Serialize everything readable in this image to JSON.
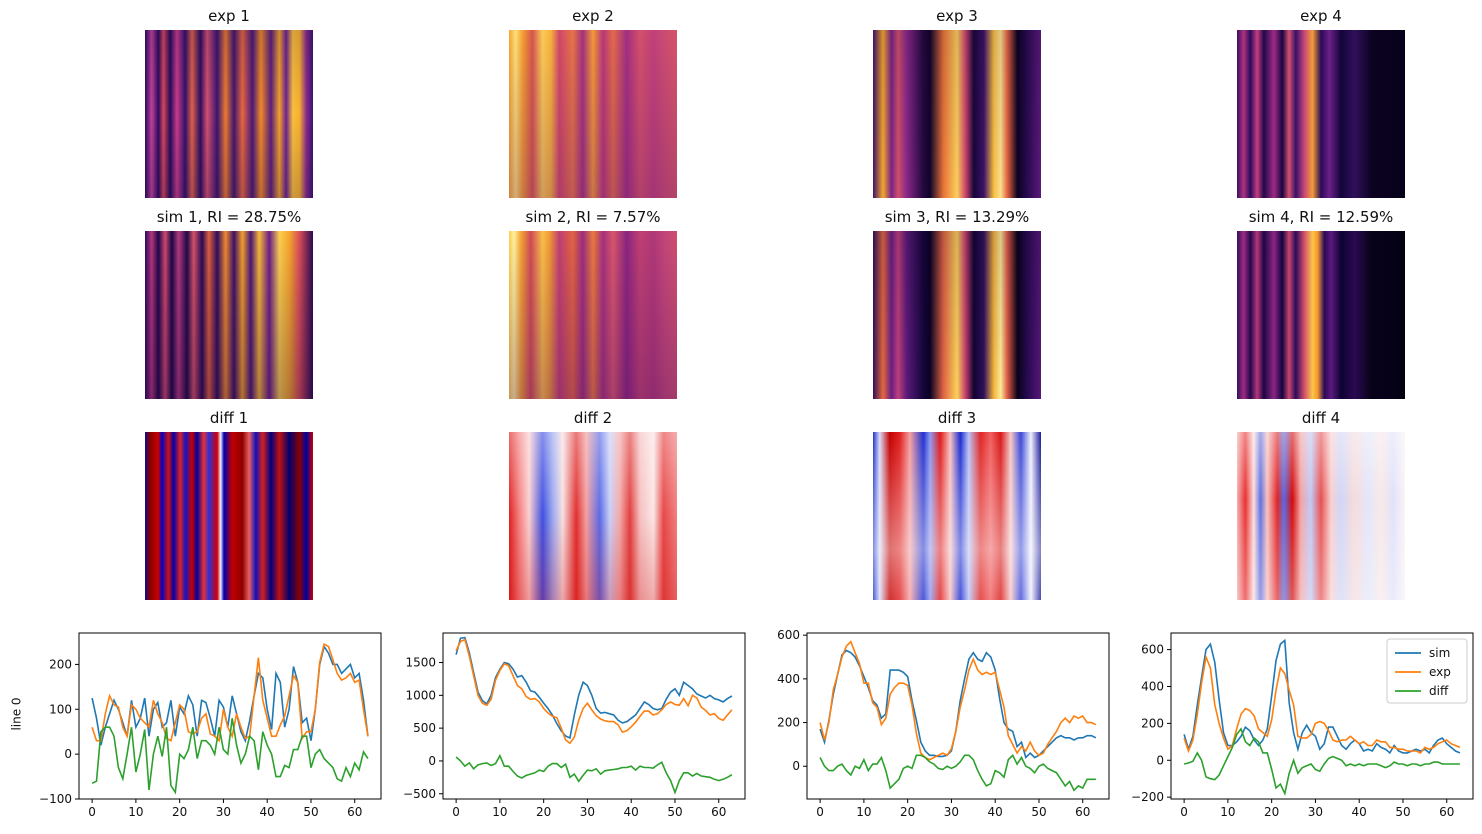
{
  "rows": {
    "exp_titles": [
      "exp 1",
      "exp 2",
      "exp 3",
      "exp 4"
    ],
    "sim_titles": [
      "sim 1, RI = 28.75%",
      "sim 2, RI = 7.57%",
      "sim 3, RI = 13.29%",
      "sim 4, RI = 12.59%"
    ],
    "diff_titles": [
      "diff 1",
      "diff 2",
      "diff 3",
      "diff 4"
    ]
  },
  "ylabel_line": "line 0",
  "colors": {
    "sim": "#1f77b4",
    "exp": "#ff7f0e",
    "diff": "#2ca02c"
  },
  "chart_data": [
    {
      "type": "line",
      "x": [
        0,
        1,
        2,
        3,
        4,
        5,
        6,
        7,
        8,
        9,
        10,
        11,
        12,
        13,
        14,
        15,
        16,
        17,
        18,
        19,
        20,
        21,
        22,
        23,
        24,
        25,
        26,
        27,
        28,
        29,
        30,
        31,
        32,
        33,
        34,
        35,
        36,
        37,
        38,
        39,
        40,
        41,
        42,
        43,
        44,
        45,
        46,
        47,
        48,
        49,
        50,
        51,
        52,
        53,
        54,
        55,
        56,
        57,
        58,
        59,
        60,
        61,
        62,
        63
      ],
      "xlim": [
        -3,
        66
      ],
      "ylim": [
        -100,
        270
      ],
      "xticks": [
        0,
        10,
        20,
        30,
        40,
        50,
        60
      ],
      "yticks": [
        -100,
        0,
        100,
        200
      ],
      "legend": null,
      "series": [
        {
          "name": "sim",
          "values": [
            125,
            80,
            20,
            60,
            90,
            120,
            100,
            70,
            40,
            120,
            60,
            80,
            125,
            40,
            100,
            115,
            60,
            70,
            120,
            40,
            105,
            90,
            130,
            110,
            40,
            120,
            115,
            80,
            40,
            120,
            105,
            60,
            130,
            90,
            50,
            30,
            75,
            130,
            180,
            170,
            100,
            55,
            180,
            160,
            60,
            100,
            195,
            160,
            70,
            80,
            30,
            100,
            200,
            240,
            225,
            200,
            200,
            180,
            190,
            200,
            170,
            180,
            120,
            40
          ]
        },
        {
          "name": "exp",
          "values": [
            60,
            30,
            30,
            90,
            130,
            110,
            105,
            60,
            40,
            110,
            100,
            80,
            70,
            60,
            120,
            90,
            70,
            35,
            30,
            70,
            110,
            100,
            50,
            45,
            50,
            80,
            90,
            45,
            40,
            30,
            100,
            60,
            40,
            90,
            60,
            35,
            40,
            130,
            215,
            120,
            80,
            40,
            40,
            65,
            85,
            130,
            175,
            160,
            35,
            50,
            50,
            100,
            205,
            245,
            240,
            210,
            180,
            165,
            170,
            180,
            160,
            165,
            100,
            40
          ]
        },
        {
          "name": "diff",
          "values": [
            -65,
            -60,
            50,
            60,
            60,
            40,
            -30,
            -55,
            0,
            60,
            -40,
            0,
            55,
            -80,
            0,
            40,
            -5,
            60,
            -70,
            -85,
            0,
            -10,
            10,
            60,
            -10,
            30,
            30,
            20,
            0,
            60,
            10,
            0,
            80,
            20,
            -20,
            0,
            40,
            30,
            -35,
            50,
            20,
            0,
            -50,
            -50,
            -25,
            -30,
            10,
            10,
            40,
            40,
            -30,
            0,
            10,
            -10,
            -20,
            -30,
            -55,
            -60,
            -30,
            -50,
            -20,
            -35,
            5,
            -10
          ]
        }
      ]
    },
    {
      "type": "line",
      "x": [
        0,
        1,
        2,
        3,
        4,
        5,
        6,
        7,
        8,
        9,
        10,
        11,
        12,
        13,
        14,
        15,
        16,
        17,
        18,
        19,
        20,
        21,
        22,
        23,
        24,
        25,
        26,
        27,
        28,
        29,
        30,
        31,
        32,
        33,
        34,
        35,
        36,
        37,
        38,
        39,
        40,
        41,
        42,
        43,
        44,
        45,
        46,
        47,
        48,
        49,
        50,
        51,
        52,
        53,
        54,
        55,
        56,
        57,
        58,
        59,
        60,
        61,
        62,
        63
      ],
      "xlim": [
        -3,
        66
      ],
      "ylim": [
        -580,
        1950
      ],
      "xticks": [
        0,
        10,
        20,
        30,
        40,
        50,
        60
      ],
      "yticks": [
        -500,
        0,
        500,
        1000,
        1500
      ],
      "legend": null,
      "series": [
        {
          "name": "sim",
          "values": [
            1620,
            1870,
            1880,
            1650,
            1350,
            1050,
            920,
            870,
            1000,
            1270,
            1400,
            1500,
            1480,
            1400,
            1280,
            1300,
            1200,
            1070,
            1050,
            970,
            880,
            800,
            700,
            570,
            460,
            380,
            350,
            700,
            1000,
            1200,
            1150,
            1000,
            800,
            730,
            740,
            720,
            700,
            620,
            580,
            600,
            650,
            700,
            800,
            900,
            860,
            800,
            780,
            800,
            940,
            1050,
            1100,
            1000,
            1200,
            1150,
            1100,
            1020,
            990,
            960,
            1000,
            950,
            930,
            900,
            950,
            990
          ]
        },
        {
          "name": "exp",
          "values": [
            1680,
            1820,
            1850,
            1600,
            1300,
            1000,
            880,
            850,
            940,
            1230,
            1380,
            1480,
            1450,
            1300,
            1150,
            1100,
            980,
            940,
            950,
            900,
            800,
            730,
            680,
            660,
            500,
            320,
            270,
            360,
            620,
            800,
            880,
            780,
            690,
            640,
            610,
            600,
            600,
            550,
            440,
            460,
            520,
            590,
            680,
            760,
            760,
            700,
            720,
            780,
            860,
            900,
            860,
            850,
            950,
            840,
            1000,
            960,
            820,
            770,
            700,
            720,
            650,
            620,
            700,
            780
          ]
        },
        {
          "name": "diff",
          "values": [
            60,
            0,
            -80,
            -30,
            -120,
            -60,
            -40,
            -30,
            -70,
            -40,
            80,
            -80,
            -80,
            -160,
            -230,
            -260,
            -220,
            -200,
            -180,
            -140,
            -160,
            -80,
            -40,
            -40,
            -100,
            -50,
            -250,
            -200,
            -310,
            -220,
            -140,
            -150,
            -120,
            -200,
            -150,
            -140,
            -130,
            -120,
            -100,
            -100,
            -80,
            -140,
            -80,
            -100,
            -100,
            -110,
            -60,
            -20,
            -180,
            -300,
            -480,
            -300,
            -180,
            -180,
            -230,
            -190,
            -230,
            -240,
            -250,
            -280,
            -300,
            -280,
            -250,
            -210
          ]
        }
      ]
    },
    {
      "type": "line",
      "x": [
        0,
        1,
        2,
        3,
        4,
        5,
        6,
        7,
        8,
        9,
        10,
        11,
        12,
        13,
        14,
        15,
        16,
        17,
        18,
        19,
        20,
        21,
        22,
        23,
        24,
        25,
        26,
        27,
        28,
        29,
        30,
        31,
        32,
        33,
        34,
        35,
        36,
        37,
        38,
        39,
        40,
        41,
        42,
        43,
        44,
        45,
        46,
        47,
        48,
        49,
        50,
        51,
        52,
        53,
        54,
        55,
        56,
        57,
        58,
        59,
        60,
        61,
        62,
        63
      ],
      "xlim": [
        -3,
        66
      ],
      "ylim": [
        -150,
        610
      ],
      "xticks": [
        0,
        10,
        20,
        30,
        40,
        50,
        60
      ],
      "yticks": [
        0,
        200,
        400,
        600
      ],
      "legend": null,
      "series": [
        {
          "name": "sim",
          "values": [
            170,
            110,
            210,
            330,
            420,
            510,
            530,
            520,
            500,
            460,
            410,
            360,
            300,
            280,
            220,
            240,
            440,
            440,
            440,
            430,
            410,
            300,
            210,
            110,
            70,
            50,
            50,
            45,
            45,
            50,
            70,
            160,
            300,
            400,
            490,
            520,
            490,
            480,
            520,
            500,
            440,
            310,
            200,
            170,
            160,
            90,
            110,
            40,
            60,
            40,
            50,
            70,
            90,
            110,
            130,
            140,
            130,
            130,
            120,
            130,
            130,
            140,
            140,
            130
          ]
        },
        {
          "name": "exp",
          "values": [
            200,
            120,
            200,
            350,
            420,
            500,
            550,
            570,
            520,
            470,
            380,
            380,
            290,
            270,
            190,
            220,
            330,
            360,
            380,
            380,
            370,
            280,
            150,
            60,
            40,
            30,
            40,
            50,
            60,
            50,
            80,
            160,
            270,
            350,
            440,
            490,
            440,
            420,
            430,
            420,
            430,
            350,
            270,
            140,
            100,
            60,
            90,
            70,
            110,
            70,
            50,
            60,
            100,
            130,
            160,
            200,
            220,
            200,
            230,
            220,
            230,
            200,
            200,
            190
          ]
        },
        {
          "name": "diff",
          "values": [
            40,
            0,
            -20,
            -20,
            0,
            10,
            -20,
            -40,
            0,
            -10,
            30,
            -20,
            10,
            10,
            40,
            -20,
            -100,
            -80,
            -60,
            -10,
            0,
            -10,
            50,
            50,
            40,
            20,
            10,
            -10,
            -15,
            0,
            -10,
            0,
            20,
            50,
            50,
            30,
            -20,
            -60,
            -90,
            -80,
            -20,
            -30,
            -50,
            30,
            50,
            10,
            40,
            0,
            -10,
            -30,
            0,
            10,
            -10,
            -20,
            -30,
            -60,
            -90,
            -70,
            -110,
            -90,
            -100,
            -60,
            -60,
            -60
          ]
        }
      ]
    },
    {
      "type": "line",
      "x": [
        0,
        1,
        2,
        3,
        4,
        5,
        6,
        7,
        8,
        9,
        10,
        11,
        12,
        13,
        14,
        15,
        16,
        17,
        18,
        19,
        20,
        21,
        22,
        23,
        24,
        25,
        26,
        27,
        28,
        29,
        30,
        31,
        32,
        33,
        34,
        35,
        36,
        37,
        38,
        39,
        40,
        41,
        42,
        43,
        44,
        45,
        46,
        47,
        48,
        49,
        50,
        51,
        52,
        53,
        54,
        55,
        56,
        57,
        58,
        59,
        60,
        61,
        62,
        63
      ],
      "xlim": [
        -3,
        66
      ],
      "ylim": [
        -210,
        690
      ],
      "xticks": [
        0,
        10,
        20,
        30,
        40,
        50,
        60
      ],
      "yticks": [
        -200,
        0,
        200,
        400,
        600
      ],
      "legend": {
        "position": "top-right",
        "entries": [
          "sim",
          "exp",
          "diff"
        ]
      },
      "series": [
        {
          "name": "sim",
          "values": [
            140,
            60,
            130,
            300,
            450,
            600,
            630,
            530,
            330,
            150,
            80,
            80,
            100,
            130,
            180,
            160,
            110,
            80,
            110,
            170,
            350,
            540,
            630,
            650,
            310,
            150,
            60,
            150,
            190,
            150,
            130,
            60,
            90,
            180,
            180,
            130,
            80,
            60,
            90,
            110,
            90,
            50,
            60,
            50,
            90,
            70,
            60,
            40,
            80,
            50,
            40,
            40,
            50,
            60,
            50,
            60,
            40,
            80,
            110,
            120,
            90,
            70,
            50,
            40
          ]
        },
        {
          "name": "exp",
          "values": [
            120,
            50,
            110,
            250,
            420,
            560,
            500,
            300,
            200,
            120,
            60,
            80,
            170,
            250,
            280,
            270,
            240,
            170,
            150,
            130,
            220,
            380,
            500,
            470,
            380,
            300,
            130,
            120,
            120,
            140,
            200,
            210,
            200,
            160,
            110,
            100,
            110,
            110,
            130,
            110,
            90,
            100,
            80,
            80,
            110,
            100,
            100,
            70,
            70,
            60,
            60,
            50,
            50,
            50,
            40,
            70,
            60,
            70,
            90,
            100,
            110,
            90,
            80,
            70
          ]
        },
        {
          "name": "diff",
          "values": [
            -20,
            -15,
            -5,
            40,
            0,
            -90,
            -100,
            -105,
            -80,
            -30,
            20,
            70,
            140,
            170,
            100,
            80,
            120,
            100,
            40,
            40,
            -50,
            -150,
            -130,
            -180,
            -70,
            0,
            -70,
            -40,
            -30,
            -20,
            -50,
            -60,
            -20,
            10,
            20,
            10,
            0,
            -30,
            -20,
            -30,
            -20,
            -30,
            -20,
            -20,
            -20,
            -30,
            -40,
            -30,
            -10,
            -20,
            -20,
            -30,
            -20,
            -20,
            -30,
            -20,
            -20,
            -10,
            -10,
            -20,
            -20,
            -20,
            -20,
            -20
          ]
        }
      ]
    }
  ]
}
